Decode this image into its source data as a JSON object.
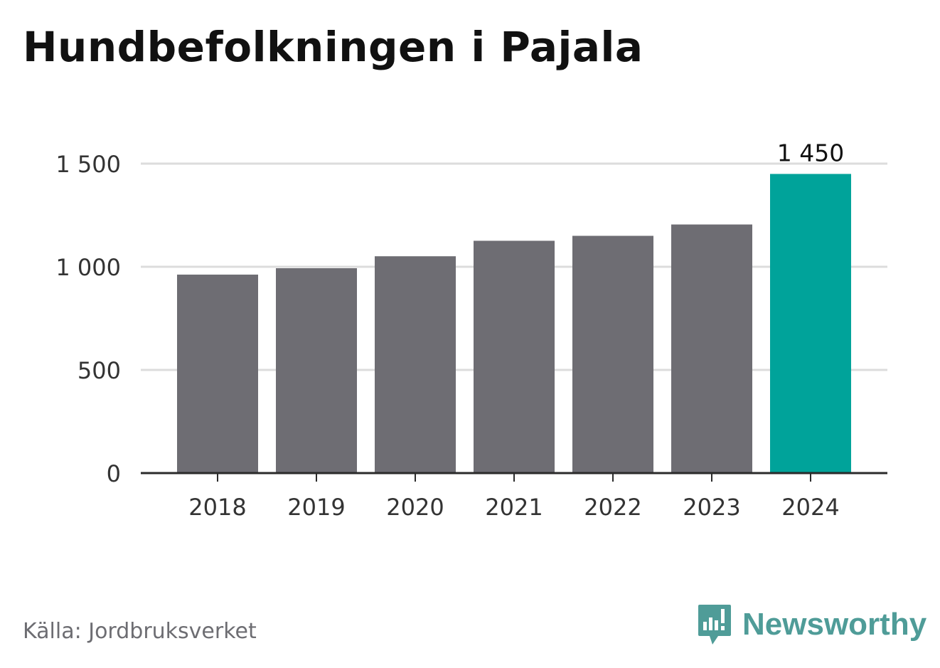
{
  "title": "Hundbefolkningen i Pajala",
  "source": "Källa: Jordbruksverket",
  "brand": {
    "name": "Newsworthy",
    "icon": "newsworthy-logo-icon",
    "color": "#4f9c98"
  },
  "colors": {
    "bar": "#6e6d73",
    "highlight": "#00a39a",
    "grid": "#dcdcdc",
    "axis": "#2b2b2b",
    "text": "#333333"
  },
  "chart_data": {
    "type": "bar",
    "categories": [
      "2018",
      "2019",
      "2020",
      "2021",
      "2022",
      "2023",
      "2024"
    ],
    "values": [
      962,
      993,
      1051,
      1126,
      1150,
      1205,
      1450
    ],
    "highlight_index": 6,
    "data_labels": [
      {
        "index": 6,
        "text": "1 450"
      }
    ],
    "yticks": [
      0,
      500,
      1000,
      1500
    ],
    "ytick_labels": [
      "0",
      "500",
      "1 000",
      "1 500"
    ],
    "ylim": [
      0,
      1500
    ],
    "grid": true
  }
}
